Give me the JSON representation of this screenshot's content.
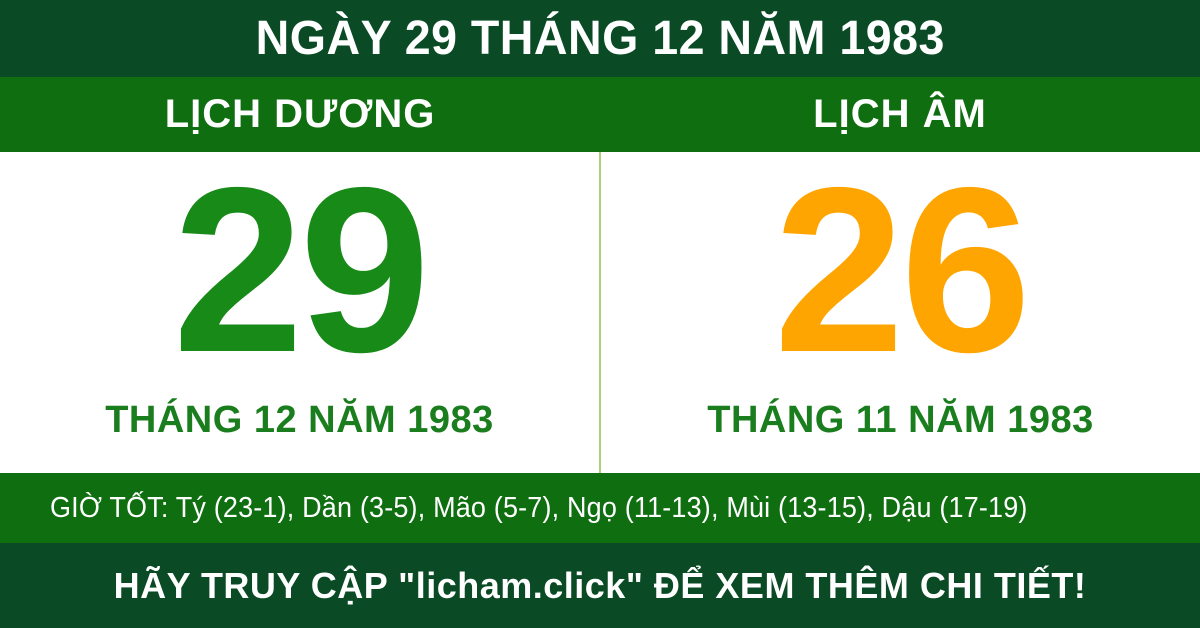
{
  "header": {
    "title": "NGÀY 29 THÁNG 12 NĂM 1983"
  },
  "calendar": {
    "solar": {
      "label": "LỊCH DƯƠNG",
      "day": "29",
      "month_year": "THÁNG 12 NĂM 1983"
    },
    "lunar": {
      "label": "LỊCH ÂM",
      "day": "26",
      "month_year": "THÁNG 11 NĂM 1983"
    }
  },
  "good_hours": {
    "text": "GIỜ TỐT: Tý (23-1), Dần (3-5), Mão (5-7), Ngọ (11-13), Mùi (13-15), Dậu (17-19)"
  },
  "footer": {
    "text": "HÃY TRUY CẬP \"licham.click\" ĐỂ XEM THÊM CHI TIẾT!"
  },
  "colors": {
    "dark_green": "#0a4a25",
    "band_green": "#0f6e10",
    "solar_green": "#178a17",
    "lunar_orange": "#ffa502",
    "month_green": "#1b7e1e",
    "divider_green": "#aad37f",
    "panel_white": "#ffffff",
    "text_white": "#ffffff"
  }
}
